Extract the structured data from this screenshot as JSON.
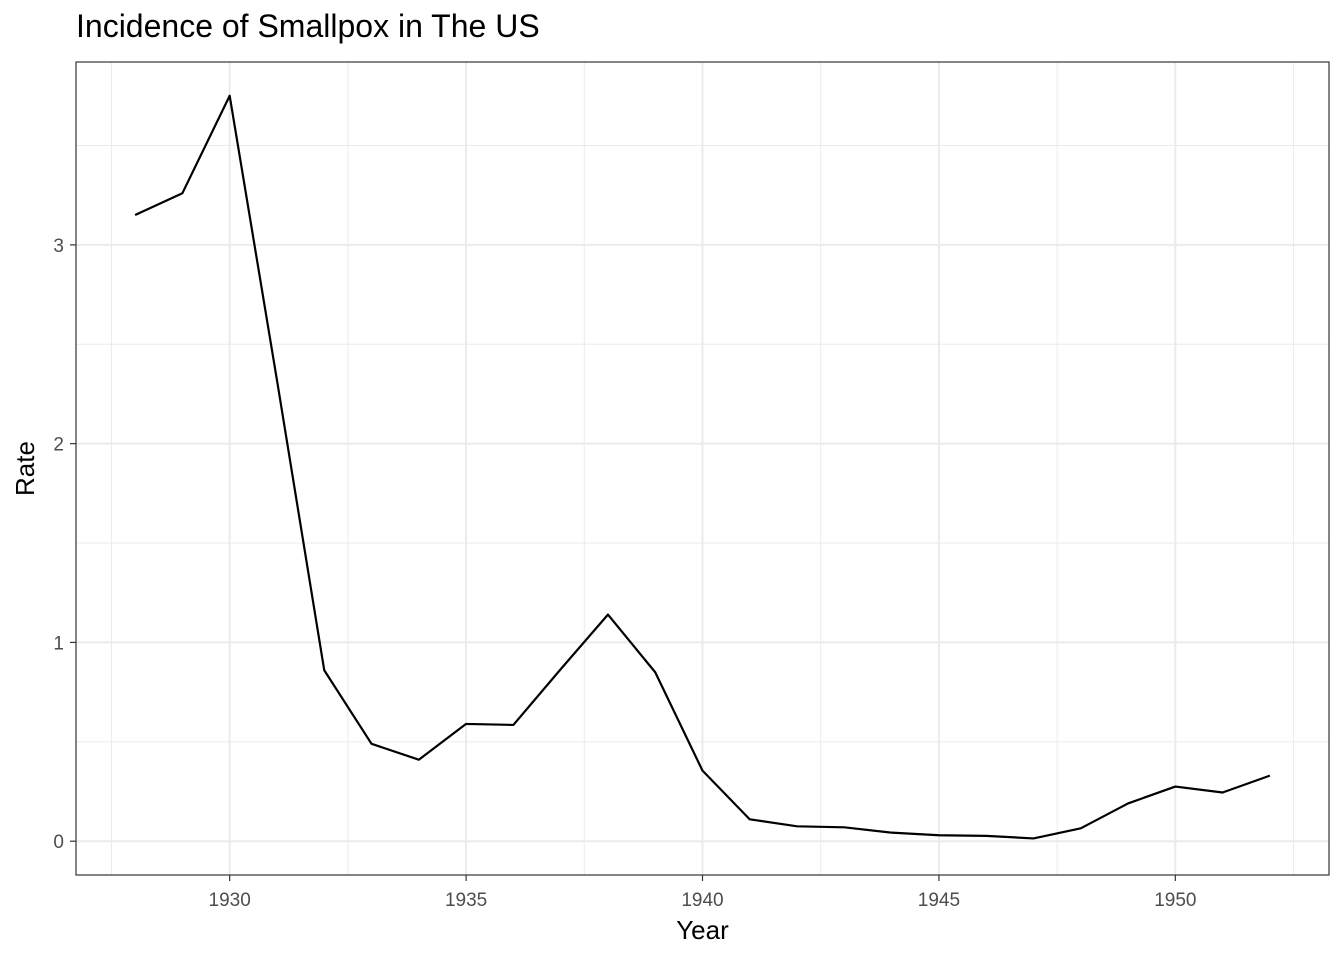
{
  "chart_data": {
    "type": "line",
    "title": "Incidence of Smallpox in The US",
    "xlabel": "Year",
    "ylabel": "Rate",
    "xlim": [
      1926.75,
      1953.25
    ],
    "ylim": [
      -0.17,
      3.92
    ],
    "xticks": [
      1930,
      1935,
      1940,
      1945,
      1950
    ],
    "yticks": [
      0,
      1,
      2,
      3
    ],
    "grid": true,
    "x": [
      1928,
      1929,
      1930,
      1931,
      1932,
      1933,
      1934,
      1935,
      1936,
      1937,
      1938,
      1939,
      1940,
      1941,
      1942,
      1943,
      1944,
      1945,
      1946,
      1947,
      1948,
      1949,
      1950,
      1951,
      1952
    ],
    "y": [
      3.15,
      3.26,
      3.75,
      2.32,
      0.86,
      0.49,
      0.41,
      0.59,
      0.585,
      0.865,
      1.14,
      0.85,
      0.355,
      0.11,
      0.075,
      0.07,
      0.043,
      0.03,
      0.027,
      0.014,
      0.065,
      0.19,
      0.275,
      0.245,
      0.33
    ],
    "line_color": "#000000"
  }
}
